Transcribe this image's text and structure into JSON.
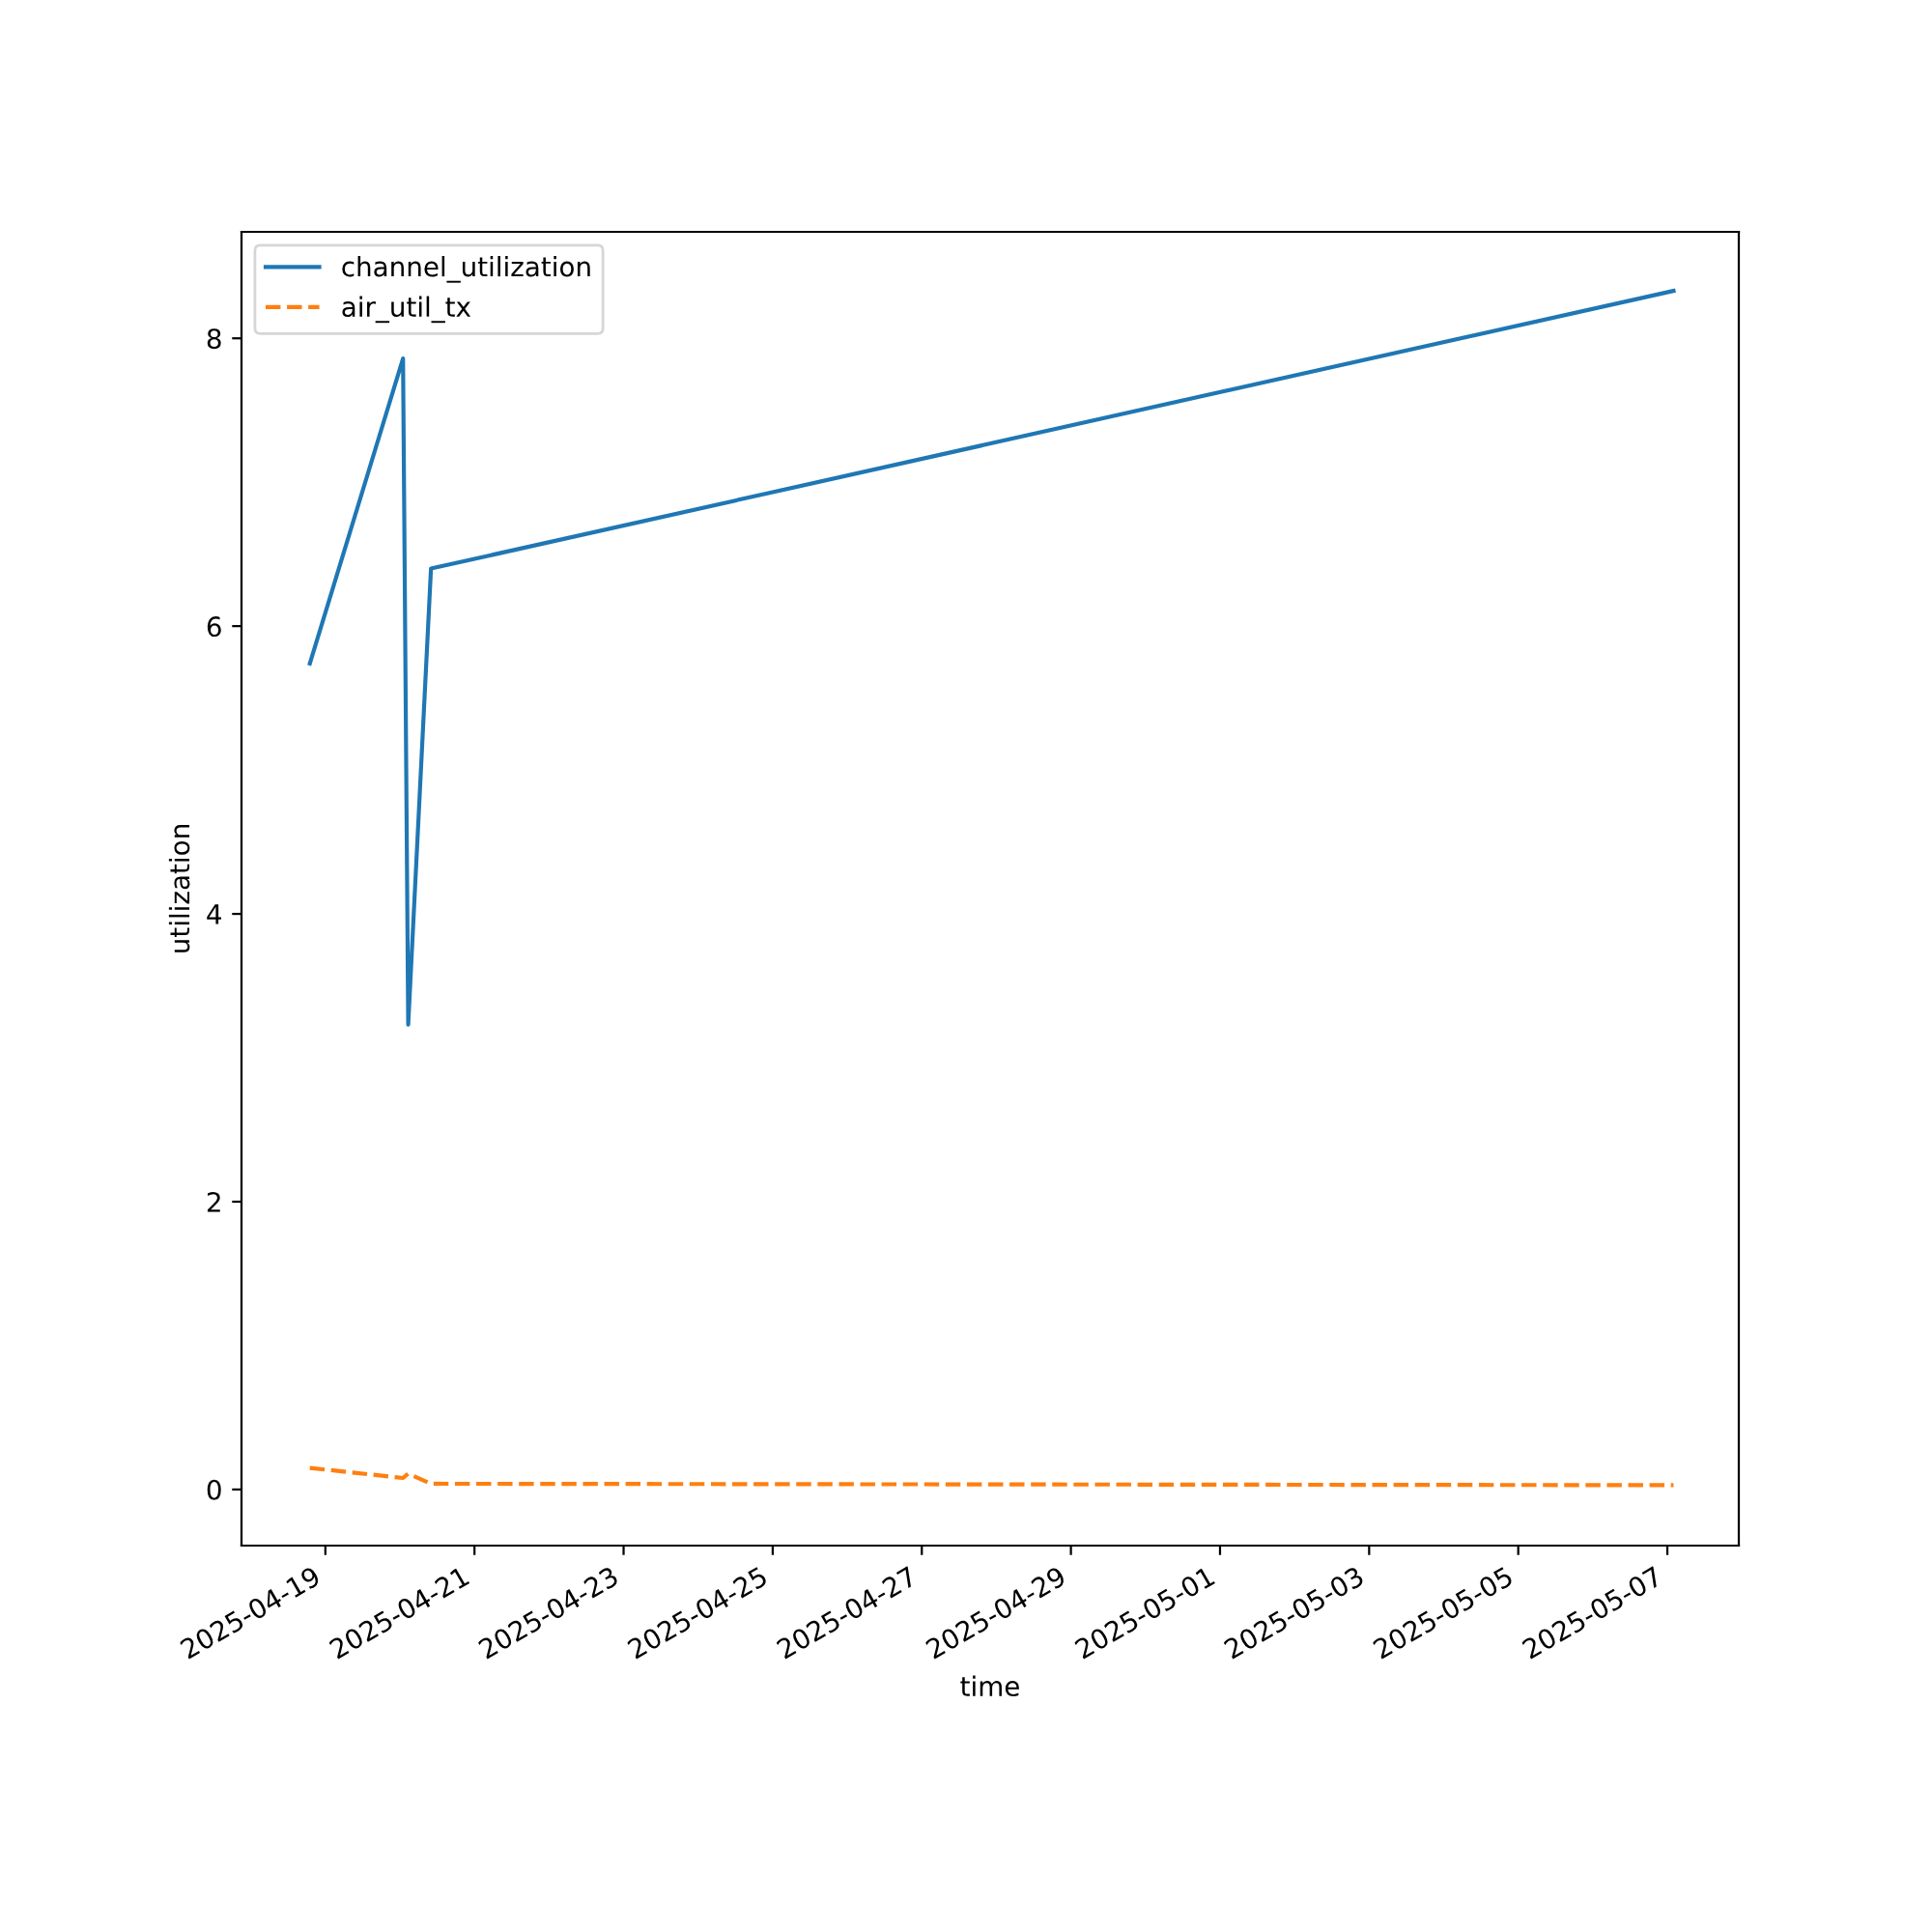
{
  "chart_data": {
    "type": "line",
    "xlabel": "time",
    "ylabel": "utilization",
    "x": [
      "2025-04-18T19:00",
      "2025-04-20T01:00",
      "2025-04-20T02:40",
      "2025-04-20T10:00",
      "2025-05-07T02:00"
    ],
    "series": [
      {
        "name": "channel_utilization",
        "color": "#1f77b4",
        "line_style": "solid",
        "values": [
          5.74,
          7.86,
          3.23,
          6.4,
          8.33
        ]
      },
      {
        "name": "air_util_tx",
        "color": "#ff7f0e",
        "line_style": "dashed",
        "values": [
          0.15,
          0.08,
          0.11,
          0.04,
          0.03
        ]
      }
    ],
    "xlim": [
      "2025-04-17T21:00",
      "2025-05-07T23:00"
    ],
    "xticks": [
      "2025-04-19",
      "2025-04-21",
      "2025-04-23",
      "2025-04-25",
      "2025-04-27",
      "2025-04-29",
      "2025-05-01",
      "2025-05-03",
      "2025-05-05",
      "2025-05-07"
    ],
    "ylim": [
      -0.39,
      8.74
    ],
    "yticks": [
      0,
      2,
      4,
      6,
      8
    ],
    "legend": "top left",
    "grid": false
  }
}
